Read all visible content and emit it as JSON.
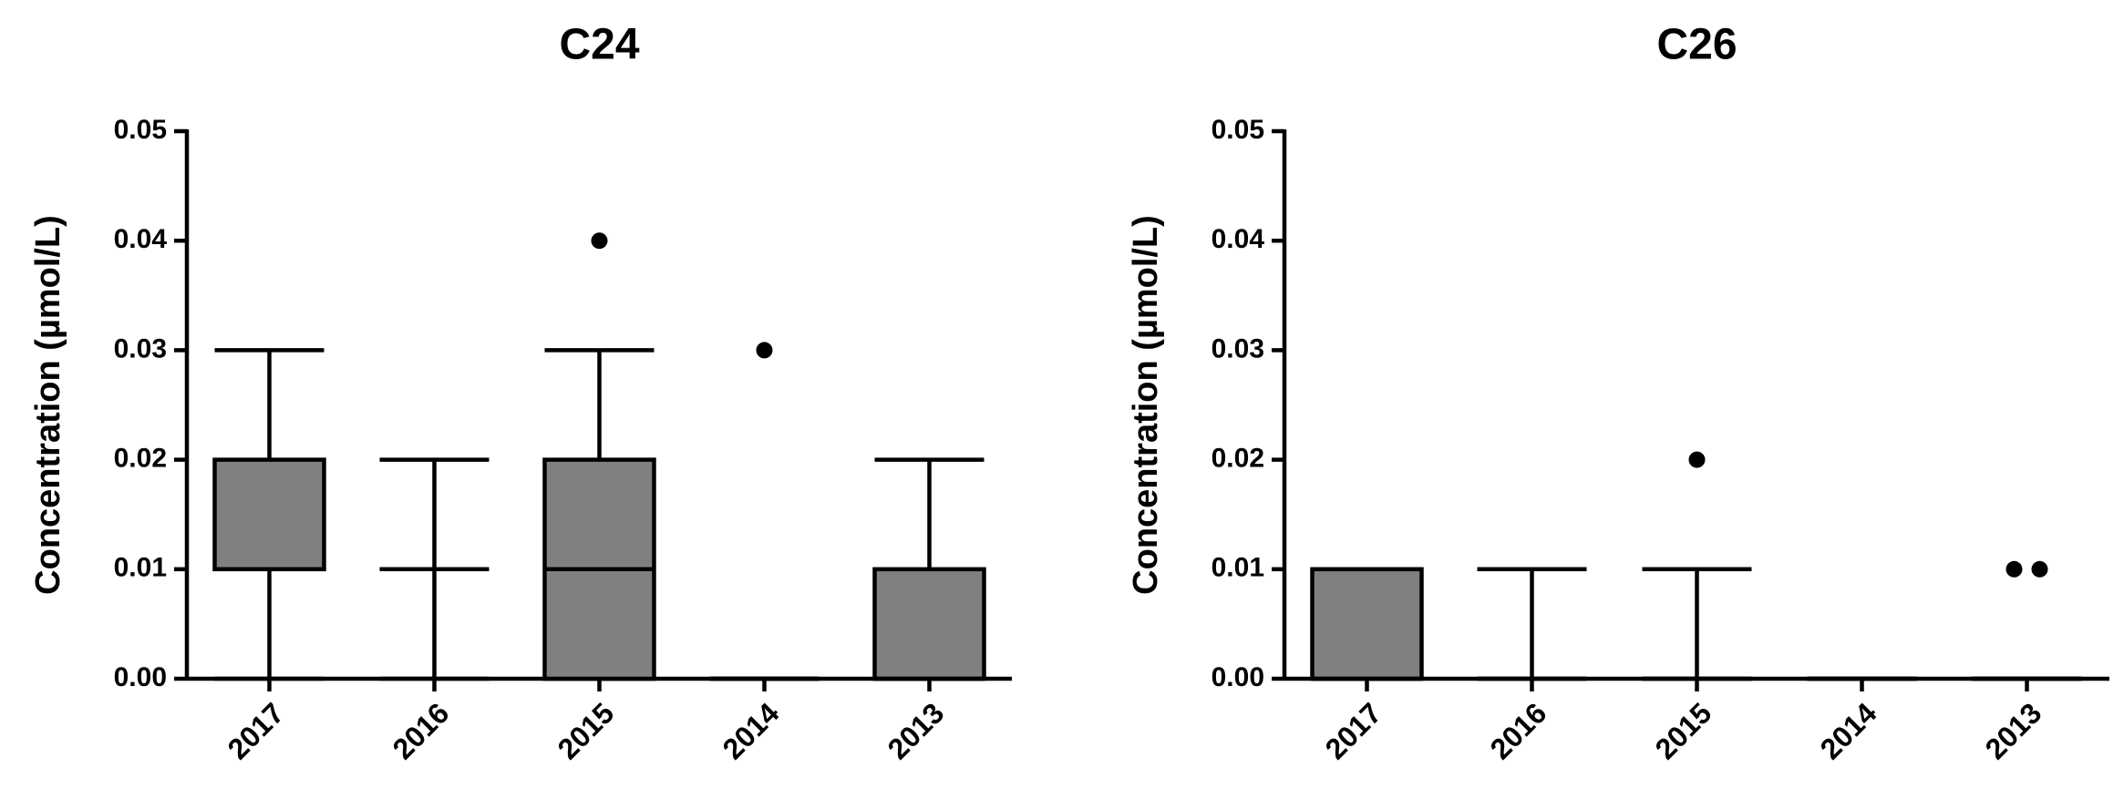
{
  "chart_data": [
    {
      "type": "box",
      "title": "C24",
      "y_label": "Concentration (µmol/L)",
      "color": "#808080",
      "categories": [
        "2017",
        "2016",
        "2015",
        "2014",
        "2013"
      ],
      "boxes": [
        {
          "min": 0,
          "q1": 0.01,
          "median": 0.01,
          "q3": 0.02,
          "max": 0.03,
          "outliers": []
        },
        {
          "min": 0,
          "q1": 0.01,
          "median": 0.01,
          "q3": 0.01,
          "max": 0.02,
          "outliers": []
        },
        {
          "min": 0,
          "q1": 0,
          "median": 0.01,
          "q3": 0.02,
          "max": 0.03,
          "outliers": [
            0.04
          ]
        },
        {
          "min": 0,
          "q1": 0,
          "median": 0,
          "q3": 0,
          "max": 0,
          "outliers": [
            0.03
          ]
        },
        {
          "min": 0,
          "q1": 0,
          "median": 0,
          "q3": 0.01,
          "max": 0.02,
          "outliers": []
        }
      ],
      "ylim": [
        0,
        0.05
      ],
      "yticks": [
        {
          "value": 0,
          "label": "0.00"
        },
        0.01,
        0.02,
        0.03,
        0.04,
        0.05
      ]
    },
    {
      "type": "box",
      "title": "C26",
      "y_label": "Concentration (µmol/L)",
      "color": "#808080",
      "categories": [
        "2017",
        "2016",
        "2015",
        "2014",
        "2013"
      ],
      "boxes": [
        {
          "min": 0,
          "q1": 0,
          "median": 0,
          "q3": 0.01,
          "max": 0.01,
          "outliers": []
        },
        {
          "min": 0,
          "q1": 0,
          "median": 0,
          "q3": 0,
          "max": 0.01,
          "outliers": []
        },
        {
          "min": 0,
          "q1": 0,
          "median": 0,
          "q3": 0,
          "max": 0.01,
          "outliers": [
            0.02
          ]
        },
        {
          "min": 0,
          "q1": 0,
          "median": 0,
          "q3": 0,
          "max": 0,
          "outliers": []
        },
        {
          "min": 0,
          "q1": 0,
          "median": 0,
          "q3": 0,
          "max": 0,
          "outliers": [
            0.01,
            0.01
          ]
        }
      ],
      "ylim": [
        0,
        0.05
      ],
      "yticks": [
        {
          "value": 0,
          "label": "0.00"
        },
        0.01,
        0.02,
        0.03,
        0.04,
        0.05
      ]
    }
  ]
}
